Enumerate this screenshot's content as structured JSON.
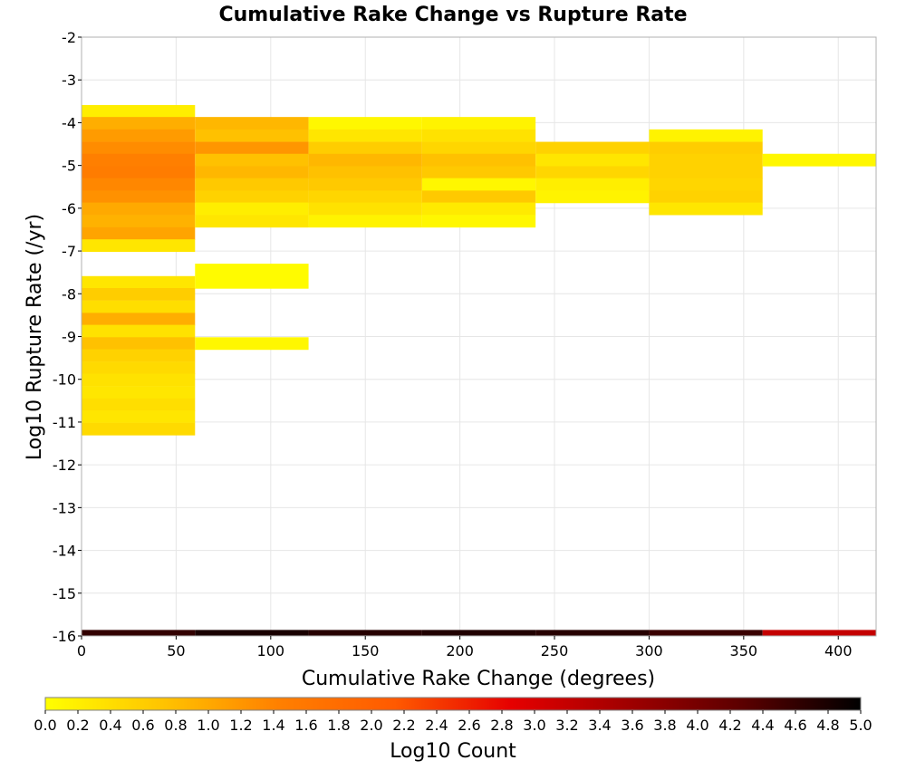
{
  "chart_data": {
    "type": "heatmap",
    "title": "Cumulative Rake Change vs Rupture Rate",
    "xlabel": "Cumulative Rake Change (degrees)",
    "ylabel": "Log10 Rupture Rate (/yr)",
    "xlim": [
      0,
      420
    ],
    "ylim": [
      -16,
      -2
    ],
    "x_ticks": [
      0,
      50,
      100,
      150,
      200,
      250,
      300,
      350,
      400
    ],
    "y_ticks": [
      -2,
      -3,
      -4,
      -5,
      -6,
      -7,
      -8,
      -9,
      -10,
      -11,
      -12,
      -13,
      -14,
      -15,
      -16
    ],
    "grid": true,
    "colorbar": {
      "label": "Log10 Count",
      "range": [
        0.0,
        5.0
      ],
      "ticks": [
        "0.0",
        "0.2",
        "0.4",
        "0.6",
        "0.8",
        "1.0",
        "1.2",
        "1.4",
        "1.6",
        "1.8",
        "2.0",
        "2.2",
        "2.4",
        "2.6",
        "2.8",
        "3.0",
        "3.2",
        "3.4",
        "3.6",
        "3.8",
        "4.0",
        "4.2",
        "4.4",
        "4.6",
        "4.8",
        "5.0"
      ],
      "colors": [
        "#ffff00",
        "#ffc400",
        "#ff8000",
        "#ff5a00",
        "#e60000",
        "#a00000",
        "#5a0000",
        "#000000"
      ]
    },
    "x_bin_width": 60,
    "y_bin_height": 0.286,
    "columns": [
      {
        "x0": 0,
        "cells": [
          [
            -3.73,
            0.2
          ],
          [
            -4.01,
            0.95
          ],
          [
            -4.3,
            1.15
          ],
          [
            -4.59,
            1.3
          ],
          [
            -4.87,
            1.45
          ],
          [
            -5.16,
            1.5
          ],
          [
            -5.44,
            1.35
          ],
          [
            -5.73,
            1.25
          ],
          [
            -6.01,
            1.0
          ],
          [
            -6.3,
            0.9
          ],
          [
            -6.59,
            1.05
          ],
          [
            -6.87,
            0.3
          ],
          [
            -7.73,
            0.3
          ],
          [
            -8.01,
            0.6
          ],
          [
            -8.3,
            0.4
          ],
          [
            -8.59,
            0.95
          ],
          [
            -8.87,
            0.35
          ],
          [
            -9.16,
            0.75
          ],
          [
            -9.44,
            0.55
          ],
          [
            -9.73,
            0.45
          ],
          [
            -10.01,
            0.35
          ],
          [
            -10.3,
            0.3
          ],
          [
            -10.59,
            0.4
          ],
          [
            -10.87,
            0.3
          ],
          [
            -11.16,
            0.45
          ]
        ]
      },
      {
        "x0": 60,
        "cells": [
          [
            -4.01,
            0.85
          ],
          [
            -4.3,
            0.75
          ],
          [
            -4.59,
            1.2
          ],
          [
            -4.87,
            0.75
          ],
          [
            -5.16,
            0.85
          ],
          [
            -5.44,
            0.65
          ],
          [
            -5.73,
            0.55
          ],
          [
            -6.01,
            0.2
          ],
          [
            -6.3,
            0.3
          ],
          [
            -7.44,
            0.05
          ],
          [
            -7.73,
            0.05
          ],
          [
            -9.16,
            0.1
          ]
        ]
      },
      {
        "x0": 120,
        "cells": [
          [
            -4.01,
            0.1
          ],
          [
            -4.3,
            0.3
          ],
          [
            -4.59,
            0.6
          ],
          [
            -4.87,
            0.85
          ],
          [
            -5.16,
            0.75
          ],
          [
            -5.44,
            0.65
          ],
          [
            -5.73,
            0.5
          ],
          [
            -6.01,
            0.35
          ],
          [
            -6.3,
            0.15
          ]
        ]
      },
      {
        "x0": 180,
        "cells": [
          [
            -4.01,
            0.15
          ],
          [
            -4.3,
            0.35
          ],
          [
            -4.59,
            0.5
          ],
          [
            -4.87,
            0.75
          ],
          [
            -5.16,
            0.65
          ],
          [
            -5.44,
            0.1
          ],
          [
            -5.73,
            0.65
          ],
          [
            -6.01,
            0.25
          ],
          [
            -6.3,
            0.1
          ]
        ]
      },
      {
        "x0": 240,
        "cells": [
          [
            -4.59,
            0.55
          ],
          [
            -4.87,
            0.3
          ],
          [
            -5.16,
            0.5
          ],
          [
            -5.44,
            0.2
          ],
          [
            -5.73,
            0.15
          ]
        ]
      },
      {
        "x0": 300,
        "cells": [
          [
            -4.3,
            0.15
          ],
          [
            -4.59,
            0.6
          ],
          [
            -4.87,
            0.55
          ],
          [
            -5.16,
            0.55
          ],
          [
            -5.44,
            0.5
          ],
          [
            -5.73,
            0.55
          ],
          [
            -6.01,
            0.3
          ]
        ]
      },
      {
        "x0": 360,
        "cells": [
          [
            -4.87,
            0.1
          ]
        ]
      }
    ],
    "bottom_row": {
      "y": -15.93,
      "cells": [
        [
          0,
          4.6
        ],
        [
          60,
          4.8
        ],
        [
          120,
          4.7
        ],
        [
          180,
          4.75
        ],
        [
          240,
          4.7
        ],
        [
          300,
          4.55
        ],
        [
          360,
          3.2
        ]
      ]
    }
  }
}
